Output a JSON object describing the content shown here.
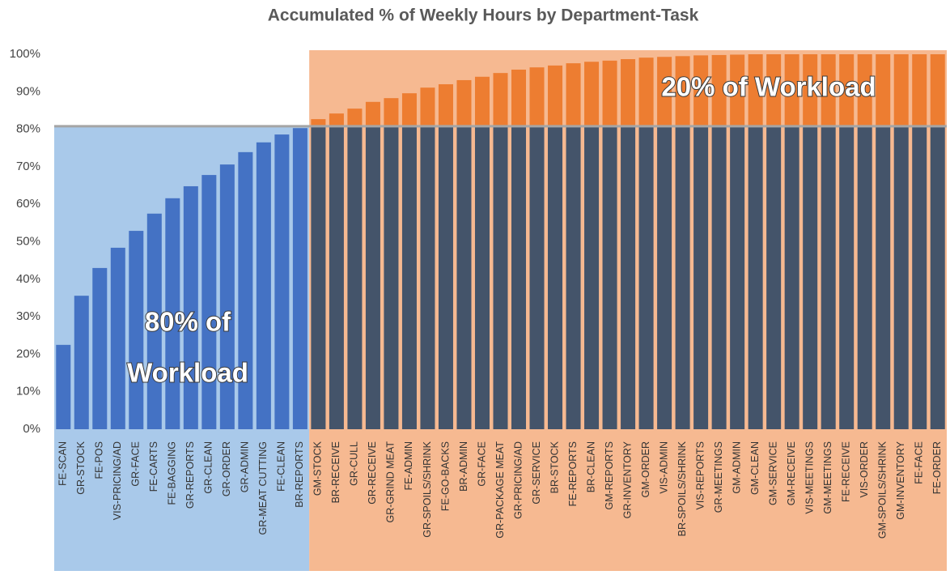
{
  "chart_data": {
    "type": "bar",
    "title": "Accumulated % of Weekly Hours by Department-Task",
    "categories": [
      "FE-SCAN",
      "GR-STOCK",
      "FE-POS",
      "VIS-PRICING/AD",
      "GR-FACE",
      "FE-CARTS",
      "FE-BAGGING",
      "GR-REPORTS",
      "GR-CLEAN",
      "GR-ORDER",
      "GR-ADMIN",
      "GR-MEAT CUTTING",
      "FE-CLEAN",
      "BR-REPORTS",
      "GM-STOCK",
      "BR-RECEIVE",
      "GR-CULL",
      "GR-RECEIVE",
      "GR-GRIND MEAT",
      "FE-ADMIN",
      "GR-SPOILS/SHRINK",
      "FE-GO-BACKS",
      "BR-ADMIN",
      "GR-FACE",
      "GR-PACKAGE MEAT",
      "GR-PRICING/AD",
      "GR-SERVICE",
      "BR-STOCK",
      "FE-REPORTS",
      "BR-CLEAN",
      "GM-REPORTS",
      "GR-INVENTORY",
      "GM-ORDER",
      "VIS-ADMIN",
      "BR-SPOILS/SHRINK",
      "VIS-REPORTS",
      "GR-MEETINGS",
      "GM-ADMIN",
      "GM-CLEAN",
      "GM-SERVICE",
      "GM-RECEIVE",
      "VIS-MEETINGS",
      "GM-MEETINGS",
      "FE-RECEIVE",
      "VIS-ORDER",
      "GM-SPOILS/SHRINK",
      "GM-INVENTORY",
      "FE-FACE",
      "FE-ORDER"
    ],
    "values": [
      22.5,
      35.6,
      43.0,
      48.4,
      52.9,
      57.5,
      61.6,
      64.8,
      67.8,
      70.6,
      73.9,
      76.5,
      78.6,
      80.3,
      82.7,
      84.2,
      85.5,
      87.3,
      88.3,
      89.6,
      91.1,
      92.0,
      93.1,
      94.0,
      95.0,
      95.9,
      96.5,
      97.0,
      97.6,
      98.0,
      98.3,
      98.7,
      99.1,
      99.3,
      99.5,
      99.7,
      99.8,
      99.9,
      100,
      100,
      100,
      100,
      100,
      100,
      100,
      100,
      100,
      100,
      100
    ],
    "bar_colors": [
      "#4472c4",
      "#4472c4",
      "#4472c4",
      "#4472c4",
      "#4472c4",
      "#4472c4",
      "#4472c4",
      "#4472c4",
      "#4472c4",
      "#4472c4",
      "#4472c4",
      "#4472c4",
      "#4472c4",
      "#4472c4",
      "#ed7d31",
      "#ed7d31",
      "#ed7d31",
      "#ed7d31",
      "#ed7d31",
      "#ed7d31",
      "#ed7d31",
      "#ed7d31",
      "#ed7d31",
      "#ed7d31",
      "#ed7d31",
      "#ed7d31",
      "#ed7d31",
      "#ed7d31",
      "#ed7d31",
      "#ed7d31",
      "#ed7d31",
      "#ed7d31",
      "#ed7d31",
      "#ed7d31",
      "#ed7d31",
      "#ed7d31",
      "#ed7d31",
      "#ed7d31",
      "#ed7d31",
      "#ed7d31",
      "#ed7d31",
      "#ed7d31",
      "#ed7d31",
      "#ed7d31",
      "#ed7d31",
      "#ed7d31",
      "#ed7d31",
      "#ed7d31",
      "#ed7d31"
    ],
    "background_colors": {
      "#4472c4": "#a9c9ea",
      "#ed7d31": "#f6b991"
    },
    "base_color": "#44546a",
    "threshold": 80.8,
    "threshold_color": "#a5a5a5",
    "ylim": [
      0,
      100
    ],
    "yticks": [
      {
        "value": 0,
        "label": "0%"
      },
      {
        "value": 10,
        "label": "10%"
      },
      {
        "value": 20,
        "label": "20%"
      },
      {
        "value": 30,
        "label": "30%"
      },
      {
        "value": 40,
        "label": "40%"
      },
      {
        "value": 50,
        "label": "50%"
      },
      {
        "value": 60,
        "label": "60%"
      },
      {
        "value": 70,
        "label": "70%"
      },
      {
        "value": 80,
        "label": "80%"
      },
      {
        "value": 90,
        "label": "90%"
      },
      {
        "value": 100,
        "label": "100%"
      }
    ],
    "annotations": [
      {
        "text": [
          "80% of",
          "Workload"
        ]
      },
      {
        "text": "20% of Workload"
      }
    ]
  }
}
